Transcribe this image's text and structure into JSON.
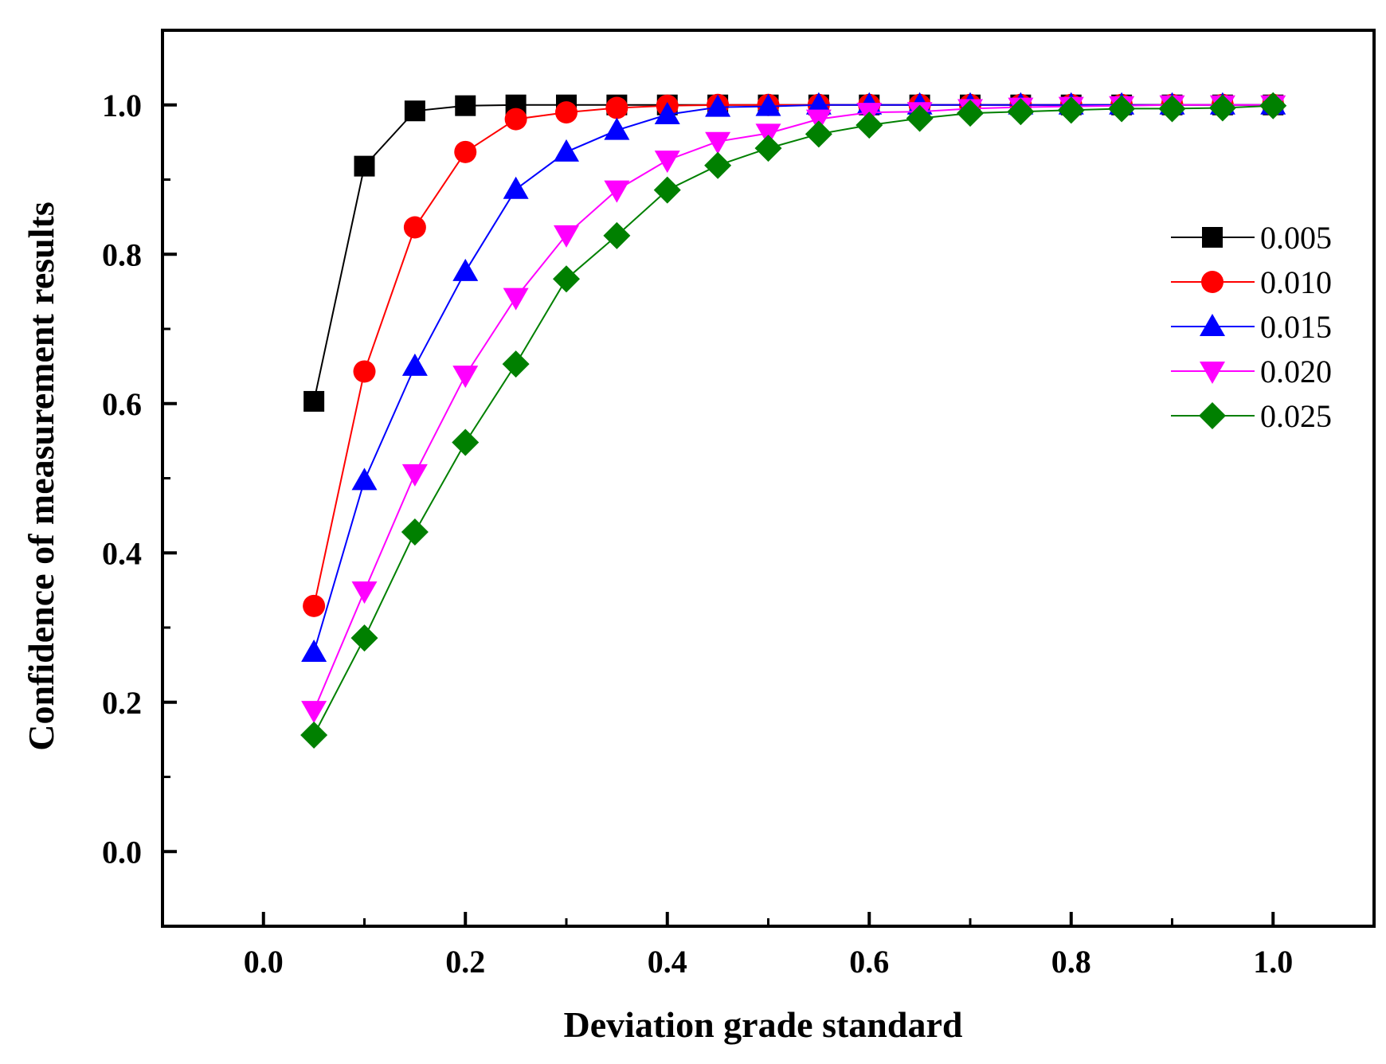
{
  "chart_data": {
    "type": "line",
    "title": "",
    "xlabel": "Deviation grade standard",
    "ylabel": "Confidence of measurement results",
    "xlim": [
      -0.1,
      1.1
    ],
    "ylim": [
      -0.1,
      1.1
    ],
    "xticks": [
      "0.0",
      "0.2",
      "0.4",
      "0.6",
      "0.8",
      "1.0"
    ],
    "yticks": [
      "0.0",
      "0.2",
      "0.4",
      "0.6",
      "0.8",
      "1.0"
    ],
    "x": [
      0.05,
      0.1,
      0.15,
      0.2,
      0.25,
      0.3,
      0.35,
      0.4,
      0.45,
      0.5,
      0.55,
      0.6,
      0.65,
      0.7,
      0.75,
      0.8,
      0.85,
      0.9,
      0.95,
      1.0
    ],
    "legend_position": "right",
    "series": [
      {
        "name": "0.005",
        "color": "#000000",
        "marker": "square",
        "values": [
          0.603,
          0.918,
          0.992,
          0.999,
          1.0,
          1.0,
          1.0,
          1.0,
          1.0,
          1.0,
          1.0,
          1.0,
          1.0,
          1.0,
          1.0,
          1.0,
          1.0,
          1.0,
          1.0,
          1.0
        ]
      },
      {
        "name": "0.010",
        "color": "#ff0000",
        "marker": "circle",
        "values": [
          0.329,
          0.643,
          0.836,
          0.937,
          0.981,
          0.99,
          0.996,
          0.999,
          1.0,
          1.0,
          1.0,
          1.0,
          1.0,
          1.0,
          1.0,
          1.0,
          1.0,
          1.0,
          1.0,
          1.0
        ]
      },
      {
        "name": "0.015",
        "color": "#0000ff",
        "marker": "triangle-up",
        "values": [
          0.267,
          0.497,
          0.65,
          0.777,
          0.887,
          0.937,
          0.966,
          0.987,
          0.997,
          0.998,
          1.0,
          1.0,
          1.0,
          1.0,
          1.0,
          1.0,
          1.0,
          1.0,
          1.0,
          1.0
        ]
      },
      {
        "name": "0.020",
        "color": "#ff00ff",
        "marker": "triangle-down",
        "values": [
          0.189,
          0.349,
          0.506,
          0.638,
          0.742,
          0.826,
          0.886,
          0.926,
          0.951,
          0.962,
          0.981,
          0.99,
          0.991,
          0.995,
          0.997,
          0.998,
          0.999,
          1.0,
          1.0,
          1.0
        ]
      },
      {
        "name": "0.025",
        "color": "#008000",
        "marker": "diamond",
        "values": [
          0.156,
          0.286,
          0.428,
          0.548,
          0.653,
          0.767,
          0.825,
          0.886,
          0.919,
          0.942,
          0.961,
          0.973,
          0.982,
          0.989,
          0.991,
          0.993,
          0.995,
          0.995,
          0.996,
          0.999
        ]
      }
    ]
  }
}
